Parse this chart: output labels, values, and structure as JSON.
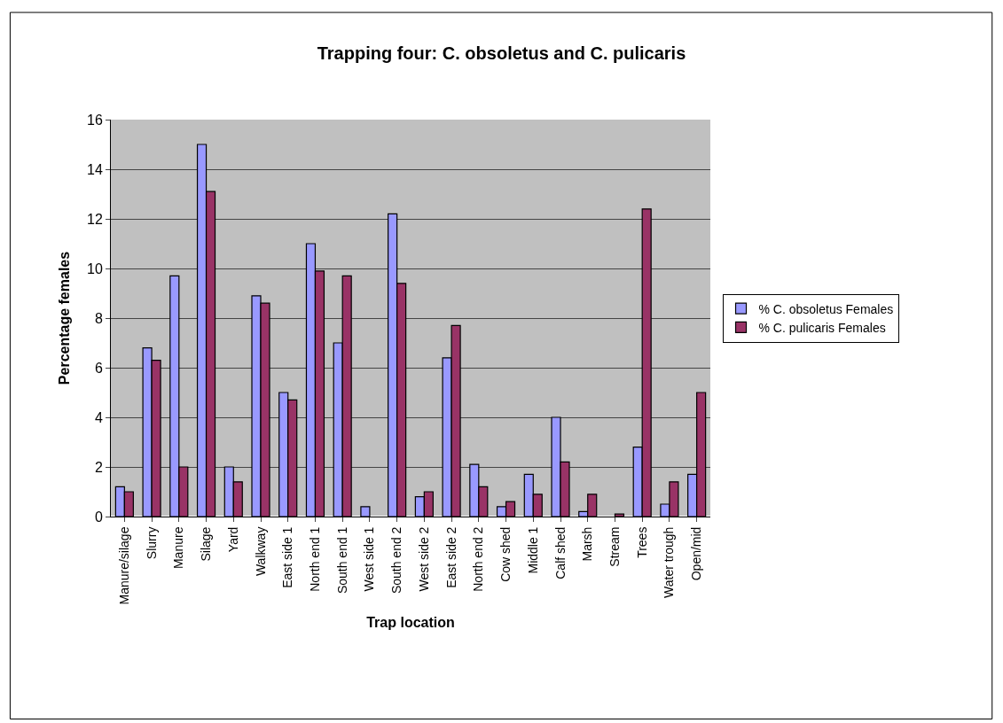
{
  "chart_data": {
    "type": "bar",
    "title": "Trapping four: C. obsoletus and C. pulicaris",
    "xlabel": "Trap location",
    "ylabel": "Percentage females",
    "categories": [
      "Manure/silage",
      "Slurry",
      "Manure",
      "Silage",
      "Yard",
      "Walkway",
      "East side 1",
      "North end 1",
      "South end 1",
      "West side 1",
      "South end 2",
      "West side 2",
      "East side 2",
      "North end 2",
      "Cow shed",
      "Middle 1",
      "Calf shed",
      "Marsh",
      "Stream",
      "Trees",
      "Water trough",
      "Open/mid"
    ],
    "series": [
      {
        "name": "% C. obsoletus Females",
        "color": "#9999ff",
        "values": [
          1.2,
          6.8,
          9.7,
          15.0,
          2.0,
          8.9,
          5.0,
          11.0,
          7.0,
          0.4,
          12.2,
          0.8,
          6.4,
          2.1,
          0.4,
          1.7,
          4.0,
          0.2,
          null,
          2.8,
          0.5,
          1.7
        ]
      },
      {
        "name": "% C. pulicaris Females",
        "color": "#993366",
        "values": [
          1.0,
          6.3,
          2.0,
          13.1,
          1.4,
          8.6,
          4.7,
          9.9,
          9.7,
          null,
          9.4,
          1.0,
          7.7,
          1.2,
          0.6,
          0.9,
          2.2,
          0.9,
          0.1,
          12.4,
          1.4,
          5.0
        ]
      }
    ],
    "ylim": [
      0,
      16
    ],
    "yticks": [
      0,
      2,
      4,
      6,
      8,
      10,
      12,
      14,
      16
    ],
    "grid": "y",
    "legend": "right"
  }
}
